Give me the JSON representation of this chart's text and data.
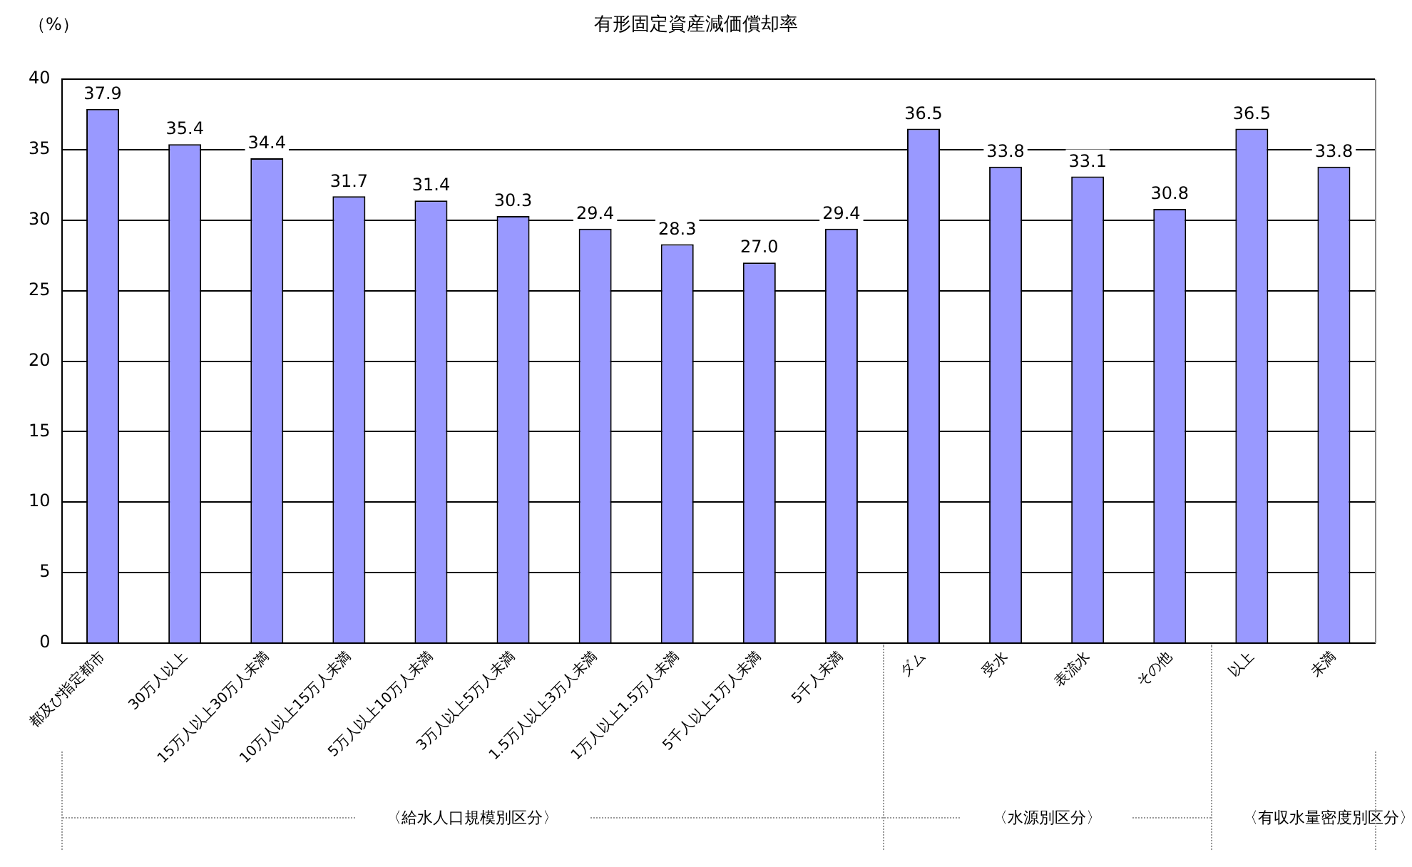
{
  "chart_data": {
    "type": "bar",
    "title": "有形固定資産減価償却率",
    "ylabel": "（%）",
    "categories": [
      "都及び指定都市",
      "30万人以上",
      "15万人以上30万人未満",
      "10万人以上15万人未満",
      "5万人以上10万人未満",
      "3万人以上5万人未満",
      "1.5万人以上3万人未満",
      "1万人以上1.5万人未満",
      "5千人以上1万人未満",
      "5千人未満",
      "ダム",
      "受水",
      "表流水",
      "その他",
      "以上",
      "未満"
    ],
    "values": [
      37.9,
      35.4,
      34.4,
      31.7,
      31.4,
      30.3,
      29.4,
      28.3,
      27.0,
      29.4,
      36.5,
      33.8,
      33.1,
      30.8,
      36.5,
      33.8
    ],
    "value_labels": [
      "37.9",
      "35.4",
      "34.4",
      "31.7",
      "31.4",
      "30.3",
      "29.4",
      "28.3",
      "27.0",
      "29.4",
      "36.5",
      "33.8",
      "33.1",
      "30.8",
      "36.5",
      "33.8"
    ],
    "color": "#9999ff",
    "ylim": [
      0,
      40
    ],
    "yticks": [
      0,
      5,
      10,
      15,
      20,
      25,
      30,
      35,
      40
    ],
    "grid": "y",
    "annotations": [
      "〈給水人口規模別区分〉",
      "〈水源別区分〉",
      "〈有収水量密度別区分〉"
    ]
  }
}
